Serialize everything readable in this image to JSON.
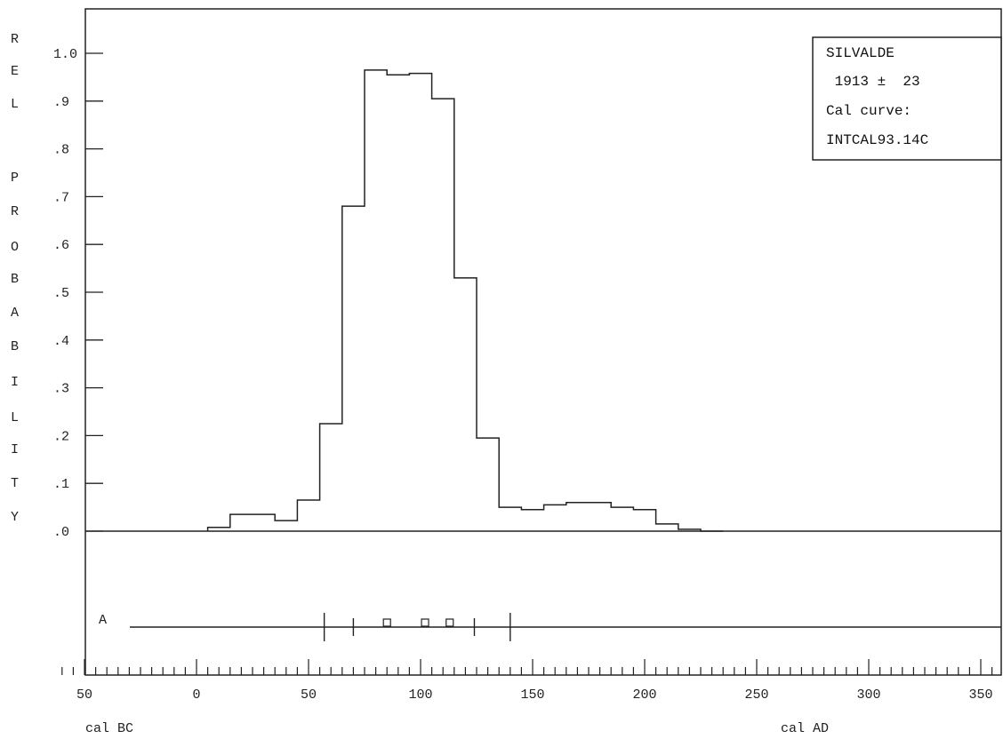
{
  "chart_data": {
    "type": "histogram",
    "title": "",
    "ylabel": "REL PROBABILITY",
    "xlabel_left": "cal BC",
    "xlabel_right": "cal AD",
    "ylim": [
      0,
      1.05
    ],
    "xlim": [
      -60,
      355
    ],
    "x_ticks": [
      -50,
      0,
      50,
      100,
      150,
      200,
      250,
      300,
      350
    ],
    "x_tick_labels": [
      "50",
      "0",
      "50",
      "100",
      "150",
      "200",
      "250",
      "300",
      "350"
    ],
    "y_ticks": [
      0,
      0.1,
      0.2,
      0.3,
      0.4,
      0.5,
      0.6,
      0.7,
      0.8,
      0.9,
      1.0
    ],
    "y_tick_labels": [
      ".0",
      ".1",
      ".2",
      ".3",
      ".4",
      ".5",
      ".6",
      ".7",
      ".8",
      ".9",
      "1.0"
    ],
    "bin_edges": [
      5,
      15,
      25,
      35,
      45,
      55,
      65,
      75,
      85,
      95,
      105,
      115,
      125,
      135,
      145,
      155,
      165,
      175,
      185,
      195,
      205,
      215,
      225,
      235
    ],
    "values": [
      0.008,
      0.035,
      0.035,
      0.022,
      0.065,
      0.225,
      0.68,
      0.965,
      0.955,
      0.958,
      0.905,
      0.53,
      0.195,
      0.05,
      0.045,
      0.055,
      0.06,
      0.06,
      0.05,
      0.045,
      0.015,
      0.004,
      0.0
    ],
    "legend": {
      "line1": "SILVALDE",
      "line2": " 1913 ±  23",
      "line3": "Cal curve:",
      "line4": "INTCAL93.14C",
      "placement": "top-right"
    },
    "range_bar": {
      "label": "A",
      "tall_ticks": [
        57,
        140
      ],
      "short_ticks": [
        70,
        124
      ],
      "markers": [
        85,
        102,
        113
      ]
    }
  }
}
